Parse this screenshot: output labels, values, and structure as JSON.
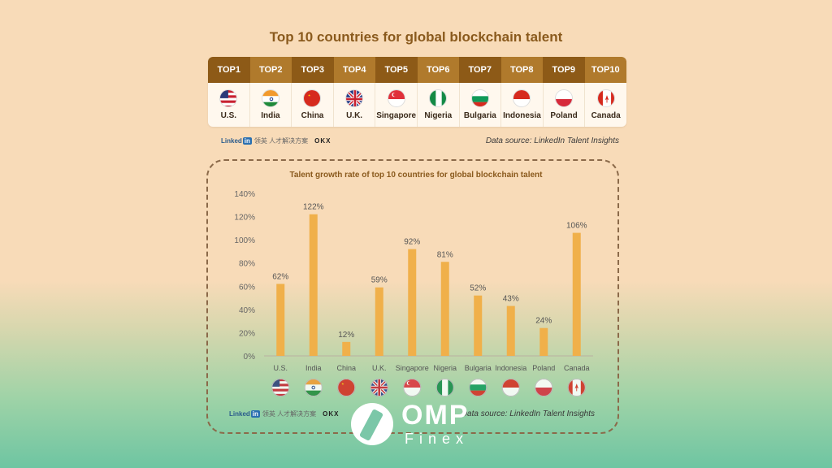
{
  "title": "Top 10 countries for global blockchain talent",
  "rank_headers": [
    "TOP1",
    "TOP2",
    "TOP3",
    "TOP4",
    "TOP5",
    "TOP6",
    "TOP7",
    "TOP8",
    "TOP9",
    "TOP10"
  ],
  "countries": [
    "U.S.",
    "India",
    "China",
    "U.K.",
    "Singapore",
    "Nigeria",
    "Bulgaria",
    "Indonesia",
    "Poland",
    "Canada"
  ],
  "flag_icons": [
    "us-flag-icon",
    "india-flag-icon",
    "china-flag-icon",
    "uk-flag-icon",
    "singapore-flag-icon",
    "nigeria-flag-icon",
    "bulgaria-flag-icon",
    "indonesia-flag-icon",
    "poland-flag-icon",
    "canada-flag-icon"
  ],
  "brand": {
    "linkedin": "Linked",
    "in": "in",
    "cn": "领英 人才解决方案",
    "okx": "OKX"
  },
  "source": "Data source: LinkedIn Talent Insights",
  "colors": {
    "header_dark": "#8d5a17",
    "header_light": "#b07a2c",
    "bar": "#f0b04a",
    "text_brown": "#8a5a1d"
  },
  "chart_data": {
    "type": "bar",
    "title": "Talent growth rate of top 10 countries for global blockchain talent",
    "categories": [
      "U.S.",
      "India",
      "China",
      "U.K.",
      "Singapore",
      "Nigeria",
      "Bulgaria",
      "Indonesia",
      "Poland",
      "Canada"
    ],
    "values": [
      62,
      122,
      12,
      59,
      92,
      81,
      52,
      43,
      24,
      106
    ],
    "data_labels": [
      "62%",
      "122%",
      "12%",
      "59%",
      "92%",
      "81%",
      "52%",
      "43%",
      "24%",
      "106%"
    ],
    "ylim": [
      0,
      140
    ],
    "y_ticks": [
      "0%",
      "20%",
      "40%",
      "60%",
      "80%",
      "100%",
      "120%",
      "140%"
    ],
    "grid": false
  },
  "logo": {
    "name": "OMP",
    "sub": "Finex"
  }
}
